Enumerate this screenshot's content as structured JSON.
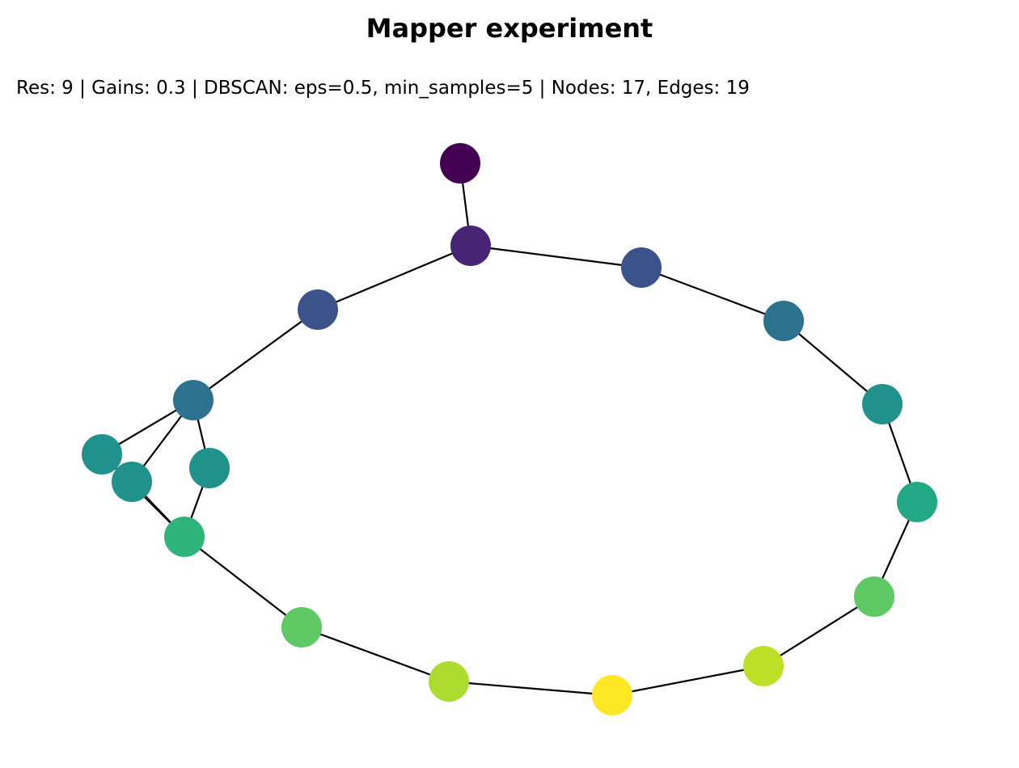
{
  "title": "Mapper experiment",
  "subtitle": "Res: 9 | Gains: 0.3 | DBSCAN: eps=0.5, min_samples=5 | Nodes: 17, Edges: 19",
  "graph": {
    "edge_color": "#000000",
    "nodes": [
      {
        "id": "n0",
        "color": "#440154"
      },
      {
        "id": "n1",
        "color": "#482475"
      },
      {
        "id": "n2",
        "color": "#3b528b"
      },
      {
        "id": "n3",
        "color": "#3b528b"
      },
      {
        "id": "n4",
        "color": "#2c728e"
      },
      {
        "id": "n5",
        "color": "#21918c"
      },
      {
        "id": "n6",
        "color": "#22a884"
      },
      {
        "id": "n7",
        "color": "#5ec962"
      },
      {
        "id": "n8",
        "color": "#bddf26"
      },
      {
        "id": "n9",
        "color": "#fde725"
      },
      {
        "id": "n10",
        "color": "#addc30"
      },
      {
        "id": "n11",
        "color": "#5ec962"
      },
      {
        "id": "n12",
        "color": "#2fb47c"
      },
      {
        "id": "n13",
        "color": "#21918c"
      },
      {
        "id": "n14",
        "color": "#21918c"
      },
      {
        "id": "n15",
        "color": "#21918c"
      },
      {
        "id": "n16",
        "color": "#2c728e"
      }
    ],
    "edges": [
      [
        "n0",
        "n1"
      ],
      [
        "n1",
        "n2"
      ],
      [
        "n2",
        "n4"
      ],
      [
        "n4",
        "n5"
      ],
      [
        "n5",
        "n6"
      ],
      [
        "n6",
        "n7"
      ],
      [
        "n7",
        "n8"
      ],
      [
        "n8",
        "n9"
      ],
      [
        "n9",
        "n10"
      ],
      [
        "n10",
        "n11"
      ],
      [
        "n11",
        "n12"
      ],
      [
        "n12",
        "n14"
      ],
      [
        "n12",
        "n15"
      ],
      [
        "n14",
        "n16"
      ],
      [
        "n15",
        "n16"
      ],
      [
        "n13",
        "n16"
      ],
      [
        "n13",
        "n12"
      ],
      [
        "n16",
        "n3"
      ],
      [
        "n3",
        "n1"
      ]
    ]
  }
}
